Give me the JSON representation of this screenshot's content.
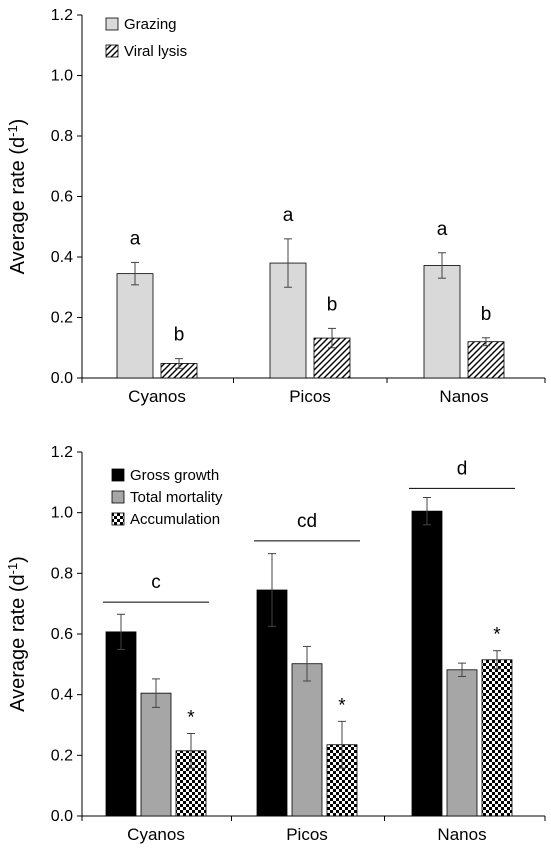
{
  "chart_data": [
    {
      "type": "bar",
      "ylabel_main": "Average rate (d",
      "ylabel_sup": "-1",
      "ylabel_end": ")",
      "ylim": [
        0,
        1.2
      ],
      "yticks": [
        "0.0",
        "0.2",
        "0.4",
        "0.6",
        "0.8",
        "1.0",
        "1.2"
      ],
      "categories": [
        "Cyanos",
        "Picos",
        "Nanos"
      ],
      "legend_position": "top-left",
      "series": [
        {
          "name": "Grazing",
          "fill": "light-gray",
          "values": [
            0.345,
            0.38,
            0.372
          ],
          "errors": [
            0.037,
            0.08,
            0.042
          ],
          "labels": [
            "a",
            "a",
            "a"
          ]
        },
        {
          "name": "Viral lysis",
          "fill": "hatch",
          "values": [
            0.048,
            0.132,
            0.12
          ],
          "errors": [
            0.016,
            0.032,
            0.013
          ],
          "labels": [
            "b",
            "b",
            "b"
          ]
        }
      ]
    },
    {
      "type": "bar",
      "ylabel_main": "Average rate (d",
      "ylabel_sup": "-1",
      "ylabel_end": ")",
      "ylim": [
        0,
        1.2
      ],
      "yticks": [
        "0.0",
        "0.2",
        "0.4",
        "0.6",
        "0.8",
        "1.0",
        "1.2"
      ],
      "categories": [
        "Cyanos",
        "Picos",
        "Nanos"
      ],
      "legend_position": "top-left",
      "series": [
        {
          "name": "Gross growth",
          "fill": "black",
          "values": [
            0.607,
            0.745,
            1.005
          ],
          "errors": [
            0.058,
            0.12,
            0.045
          ],
          "labels": [
            "",
            "",
            ""
          ]
        },
        {
          "name": "Total mortality",
          "fill": "gray",
          "values": [
            0.405,
            0.502,
            0.482
          ],
          "errors": [
            0.047,
            0.057,
            0.022
          ],
          "labels": [
            "",
            "",
            ""
          ]
        },
        {
          "name": "Accumulation",
          "fill": "checker",
          "values": [
            0.215,
            0.235,
            0.515
          ],
          "errors": [
            0.057,
            0.077,
            0.03
          ],
          "labels": [
            "*",
            "*",
            "*"
          ]
        }
      ],
      "group_lines": [
        {
          "label": "c",
          "y": 0.705
        },
        {
          "label": "cd",
          "y": 0.907
        },
        {
          "label": "d",
          "y": 1.08
        }
      ]
    }
  ]
}
